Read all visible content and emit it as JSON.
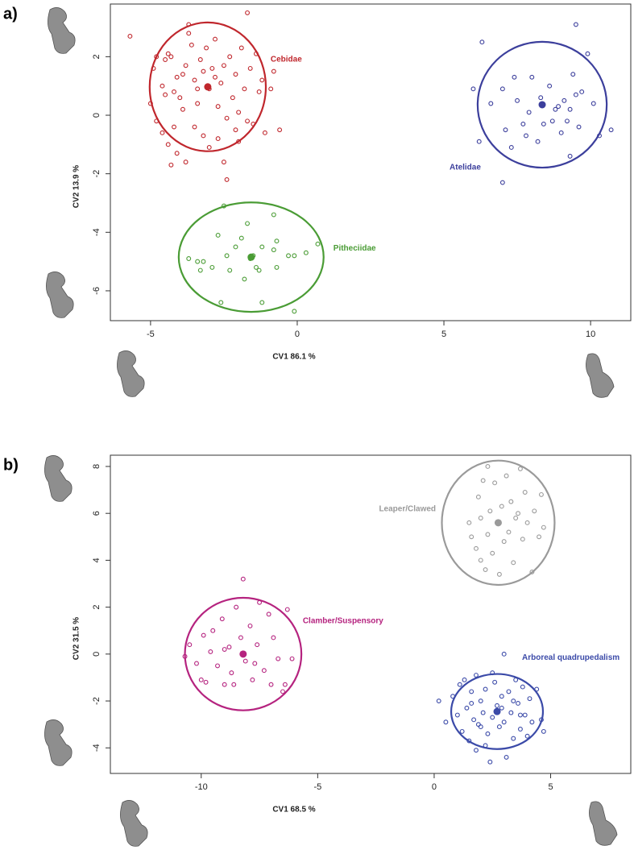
{
  "chart_data": [
    {
      "type": "scatter",
      "panel_label": "a)",
      "xlabel": "CV1 86.1 %",
      "ylabel": "CV2 13.9 %",
      "xlim": [
        -6.37,
        11.37
      ],
      "ylim": [
        -7.02,
        3.8
      ],
      "xticks": [
        -5,
        0,
        5,
        10
      ],
      "yticks": [
        -6,
        -4,
        -2,
        0,
        2
      ],
      "series": [
        {
          "name": "Cebidae",
          "color": "#c0272d",
          "centroid": [
            -3.05,
            0.97
          ],
          "ellipse": {
            "rx": 1.98,
            "ry": 2.2
          },
          "x": [
            -5.7,
            -4.9,
            -4.8,
            -4.5,
            -4.4,
            -4.3,
            -4.6,
            -4.5,
            -4.2,
            -4.1,
            -4.0,
            -3.9,
            -3.8,
            -3.7,
            -3.7,
            -3.6,
            -3.5,
            -3.4,
            -3.3,
            -3.2,
            -3.1,
            -3.0,
            -2.9,
            -2.8,
            -2.7,
            -2.6,
            -2.5,
            -2.4,
            -2.3,
            -2.2,
            -2.1,
            -2.0,
            -1.9,
            -1.8,
            -1.7,
            -1.6,
            -1.5,
            -1.4,
            -1.3,
            -1.2,
            -1.1,
            -0.9,
            -0.8,
            -0.6,
            -4.8,
            -4.6,
            -4.4,
            -4.3,
            -4.1,
            -3.8,
            -3.5,
            -3.2,
            -3.0,
            -2.7,
            -2.5,
            -2.4,
            -2.0,
            -1.7,
            -3.4,
            -2.8,
            -3.9,
            -2.1,
            -5.0,
            -4.2
          ],
          "y": [
            2.7,
            1.6,
            2.0,
            1.9,
            2.1,
            2.0,
            1.0,
            0.7,
            0.8,
            1.3,
            0.6,
            1.4,
            1.7,
            3.1,
            2.8,
            2.4,
            1.2,
            0.4,
            1.9,
            1.5,
            2.3,
            0.9,
            1.6,
            2.6,
            0.3,
            1.1,
            1.7,
            -0.1,
            2.0,
            0.6,
            1.4,
            0.1,
            2.3,
            0.9,
            3.5,
            1.6,
            -0.3,
            2.1,
            0.8,
            1.2,
            -0.6,
            0.9,
            1.5,
            -0.5,
            -0.2,
            -0.6,
            -1.0,
            -1.7,
            -1.3,
            -1.6,
            -0.4,
            -0.7,
            -1.1,
            -0.8,
            -1.6,
            -2.2,
            -0.9,
            -0.2,
            0.9,
            1.3,
            0.2,
            -0.5,
            0.4,
            -0.4
          ]
        },
        {
          "name": "Atelidae",
          "color": "#3c3f9c",
          "centroid": [
            8.35,
            0.36
          ],
          "ellipse": {
            "rx": 2.2,
            "ry": 2.15
          },
          "x": [
            6.3,
            6.0,
            6.6,
            6.2,
            7.0,
            7.1,
            7.0,
            7.3,
            7.5,
            7.7,
            7.8,
            7.9,
            8.0,
            8.2,
            8.3,
            8.4,
            8.6,
            8.7,
            8.9,
            9.0,
            9.1,
            9.2,
            9.3,
            9.4,
            9.5,
            9.6,
            9.7,
            9.9,
            10.1,
            10.3,
            10.7,
            9.5,
            9.3,
            7.4,
            8.8
          ],
          "y": [
            2.5,
            0.9,
            0.4,
            -0.9,
            0.9,
            -0.5,
            -2.3,
            -1.1,
            0.5,
            -0.3,
            -0.7,
            0.1,
            1.3,
            -0.9,
            0.6,
            -0.3,
            1.0,
            -0.2,
            0.3,
            -0.6,
            0.5,
            -0.2,
            0.2,
            1.4,
            0.7,
            -0.4,
            0.8,
            2.1,
            0.4,
            -0.7,
            -0.5,
            3.1,
            -1.4,
            1.3,
            0.2
          ]
        },
        {
          "name": "Pitheciidae",
          "color": "#4a9c35",
          "centroid": [
            -1.57,
            -4.85
          ],
          "ellipse": {
            "rx": 2.47,
            "ry": 1.87
          },
          "x": [
            -3.7,
            -3.4,
            -3.3,
            -3.2,
            -2.9,
            -2.7,
            -2.5,
            -2.4,
            -2.3,
            -2.1,
            -1.9,
            -1.8,
            -1.7,
            -1.6,
            -1.4,
            -1.3,
            -1.2,
            -0.8,
            -0.8,
            -0.7,
            -0.7,
            -0.3,
            -0.1,
            -0.1,
            0.3,
            0.7,
            -1.2,
            -2.6,
            -1.5
          ],
          "y": [
            -4.9,
            -5.0,
            -5.3,
            -5.0,
            -5.2,
            -4.1,
            -3.1,
            -4.8,
            -5.3,
            -4.5,
            -4.2,
            -5.6,
            -3.7,
            -4.9,
            -5.2,
            -5.3,
            -4.5,
            -3.4,
            -4.6,
            -4.3,
            -5.2,
            -4.8,
            -4.8,
            -6.7,
            -4.7,
            -4.4,
            -6.4,
            -6.4,
            -4.8
          ]
        }
      ]
    },
    {
      "type": "scatter",
      "panel_label": "b)",
      "xlabel": "CV1 68.5 %",
      "ylabel": "CV2 31.5 %",
      "xlim": [
        -13.9,
        8.44
      ],
      "ylim": [
        -5.09,
        8.48
      ],
      "xticks": [
        -10,
        -5,
        0,
        5
      ],
      "yticks": [
        -4,
        -2,
        0,
        2,
        4,
        6,
        8
      ],
      "series": [
        {
          "name": "Leaper/Clawed",
          "color": "#9a9a9a",
          "centroid": [
            2.75,
            5.6
          ],
          "ellipse": {
            "rx": 2.42,
            "ry": 2.65
          },
          "x": [
            1.5,
            1.8,
            1.9,
            2.0,
            2.1,
            2.2,
            2.3,
            2.3,
            2.4,
            2.5,
            2.6,
            2.7,
            2.8,
            2.9,
            3.0,
            3.1,
            3.2,
            3.3,
            3.4,
            3.5,
            3.7,
            3.8,
            3.9,
            4.0,
            4.2,
            4.3,
            4.5,
            4.6,
            4.7,
            2.0,
            1.6,
            3.6
          ],
          "y": [
            5.6,
            4.5,
            6.7,
            4.0,
            7.4,
            3.6,
            5.1,
            8.0,
            6.1,
            4.3,
            7.3,
            5.6,
            3.4,
            6.3,
            4.8,
            7.6,
            5.2,
            6.5,
            3.9,
            5.8,
            7.9,
            4.9,
            6.9,
            5.6,
            3.5,
            6.1,
            5.0,
            6.8,
            5.4,
            5.8,
            5.0,
            6.0
          ]
        },
        {
          "name": "Clamber/Suspensory",
          "color": "#b5237f",
          "centroid": [
            -8.2,
            0.0
          ],
          "ellipse": {
            "rx": 2.5,
            "ry": 2.4
          },
          "x": [
            -10.7,
            -10.5,
            -10.2,
            -9.9,
            -9.8,
            -9.6,
            -9.5,
            -9.3,
            -9.1,
            -9.0,
            -8.8,
            -8.7,
            -8.5,
            -8.3,
            -8.2,
            -8.1,
            -7.9,
            -7.8,
            -7.6,
            -7.5,
            -7.3,
            -7.1,
            -7.0,
            -6.9,
            -6.7,
            -6.5,
            -6.3,
            -6.1,
            -9.0,
            -8.6,
            -7.7,
            -10.0,
            -6.4
          ],
          "y": [
            -0.1,
            0.4,
            -0.4,
            0.8,
            -1.2,
            0.1,
            1.0,
            -0.5,
            1.5,
            -1.3,
            0.3,
            -0.8,
            2.0,
            0.7,
            3.2,
            -0.3,
            1.2,
            -1.1,
            0.4,
            2.2,
            -0.7,
            1.7,
            -1.3,
            0.7,
            -0.2,
            -1.6,
            1.9,
            -0.2,
            0.2,
            -1.3,
            -0.4,
            -1.1,
            -1.3
          ]
        },
        {
          "name": "Arboreal quadrupedalism",
          "color": "#3b4aa8",
          "centroid": [
            2.7,
            -2.45
          ],
          "ellipse": {
            "rx": 1.97,
            "ry": 1.6
          },
          "x": [
            0.2,
            0.5,
            0.8,
            1.0,
            1.2,
            1.3,
            1.4,
            1.5,
            1.6,
            1.7,
            1.8,
            1.9,
            2.0,
            2.1,
            2.2,
            2.3,
            2.4,
            2.5,
            2.6,
            2.7,
            2.8,
            2.9,
            3.0,
            3.1,
            3.2,
            3.3,
            3.4,
            3.5,
            3.6,
            3.7,
            3.8,
            3.9,
            4.0,
            4.1,
            4.2,
            4.4,
            4.6,
            4.7,
            3.0,
            1.1,
            2.2,
            3.4,
            2.0,
            1.6,
            2.9,
            3.7,
            2.5,
            1.8
          ],
          "y": [
            -2.0,
            -2.9,
            -1.8,
            -2.6,
            -3.3,
            -1.1,
            -2.3,
            -3.7,
            -1.6,
            -2.8,
            -0.9,
            -3.0,
            -2.0,
            -2.5,
            -1.5,
            -3.4,
            -4.6,
            -2.7,
            -1.2,
            -2.2,
            -3.1,
            -1.8,
            -2.9,
            -4.4,
            -1.6,
            -2.5,
            -3.6,
            -1.1,
            -2.1,
            -3.2,
            -1.4,
            -2.6,
            -3.5,
            -1.9,
            -2.9,
            -1.5,
            -2.8,
            -3.3,
            0.0,
            -1.3,
            -3.9,
            -2.0,
            -3.1,
            -2.1,
            -2.3,
            -2.6,
            -0.8,
            -4.1
          ]
        }
      ]
    }
  ]
}
